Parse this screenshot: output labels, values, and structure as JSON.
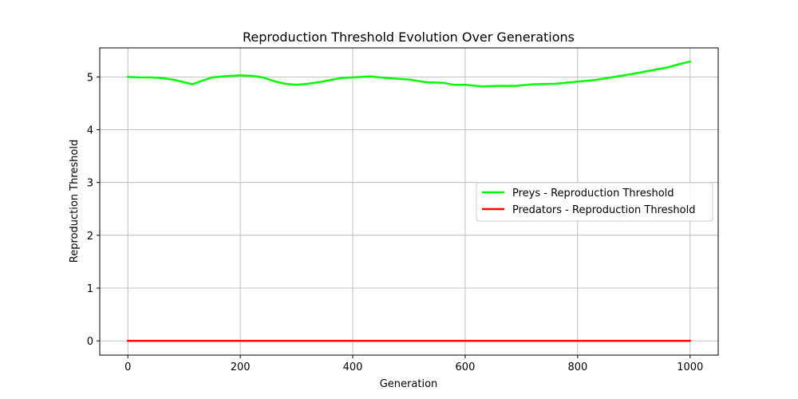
{
  "chart_data": {
    "type": "line",
    "title": "Reproduction Threshold Evolution Over Generations",
    "xlabel": "Generation",
    "ylabel": "Reproduction Threshold",
    "xlim": [
      -50,
      1050
    ],
    "ylim": [
      -0.27,
      5.55
    ],
    "xticks": [
      0,
      200,
      400,
      600,
      800,
      1000
    ],
    "yticks": [
      0,
      1,
      2,
      3,
      4,
      5
    ],
    "grid": true,
    "legend_position": "center-right",
    "series": [
      {
        "name": "Preys - Reproduction Threshold",
        "color": "#00ff00",
        "x": [
          0,
          20,
          40,
          60,
          80,
          100,
          115,
          130,
          150,
          170,
          200,
          220,
          240,
          260,
          280,
          300,
          320,
          340,
          360,
          380,
          400,
          430,
          460,
          500,
          530,
          560,
          580,
          600,
          630,
          660,
          690,
          720,
          760,
          800,
          830,
          860,
          900,
          930,
          960,
          980,
          1000
        ],
        "values": [
          5.0,
          4.99,
          4.99,
          4.98,
          4.95,
          4.9,
          4.86,
          4.92,
          4.99,
          5.01,
          5.03,
          5.02,
          4.99,
          4.92,
          4.87,
          4.85,
          4.87,
          4.9,
          4.94,
          4.98,
          4.99,
          5.01,
          4.98,
          4.95,
          4.9,
          4.89,
          4.85,
          4.85,
          4.82,
          4.83,
          4.83,
          4.86,
          4.87,
          4.91,
          4.94,
          4.99,
          5.06,
          5.12,
          5.18,
          5.24,
          5.29
        ]
      },
      {
        "name": "Predators - Reproduction Threshold",
        "color": "#ff0000",
        "x": [
          0,
          1000
        ],
        "values": [
          0,
          0
        ]
      }
    ]
  }
}
